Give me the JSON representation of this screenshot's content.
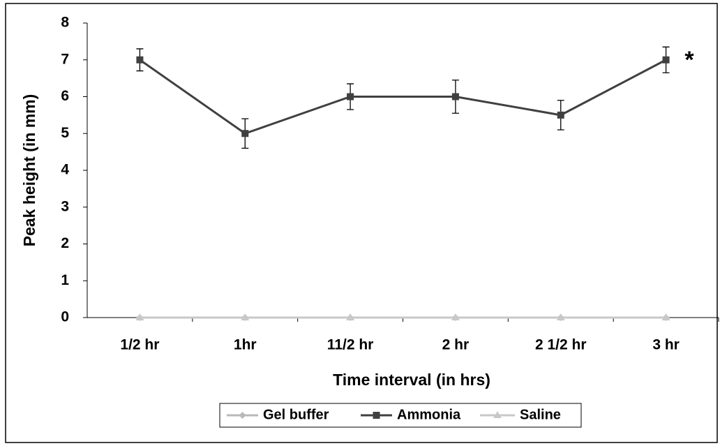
{
  "chart_data": {
    "type": "line",
    "x_label": "Time interval (in hrs)",
    "y_label": "Peak height (in mm)",
    "annotation": "*",
    "categories": [
      "1/2 hr",
      "1hr",
      "11/2 hr",
      "2 hr",
      "2 1/2 hr",
      "3 hr"
    ],
    "series": [
      {
        "name": "Gel buffer",
        "color": "#b8b8b8",
        "marker": "diamond",
        "values": [
          0,
          0,
          0,
          0,
          0,
          0
        ]
      },
      {
        "name": "Ammonia",
        "color": "#404040",
        "marker": "square",
        "values": [
          7,
          5,
          6,
          6,
          5.5,
          7
        ],
        "errors": [
          0.3,
          0.4,
          0.35,
          0.45,
          0.4,
          0.35
        ]
      },
      {
        "name": "Saline",
        "color": "#c8c8c8",
        "marker": "triangle",
        "values": [
          0,
          0,
          0,
          0,
          0,
          0
        ]
      }
    ],
    "ylim": [
      0,
      8
    ],
    "yticks": [
      0,
      1,
      2,
      3,
      4,
      5,
      6,
      7,
      8
    ],
    "grid": false,
    "legend": "bottom"
  }
}
